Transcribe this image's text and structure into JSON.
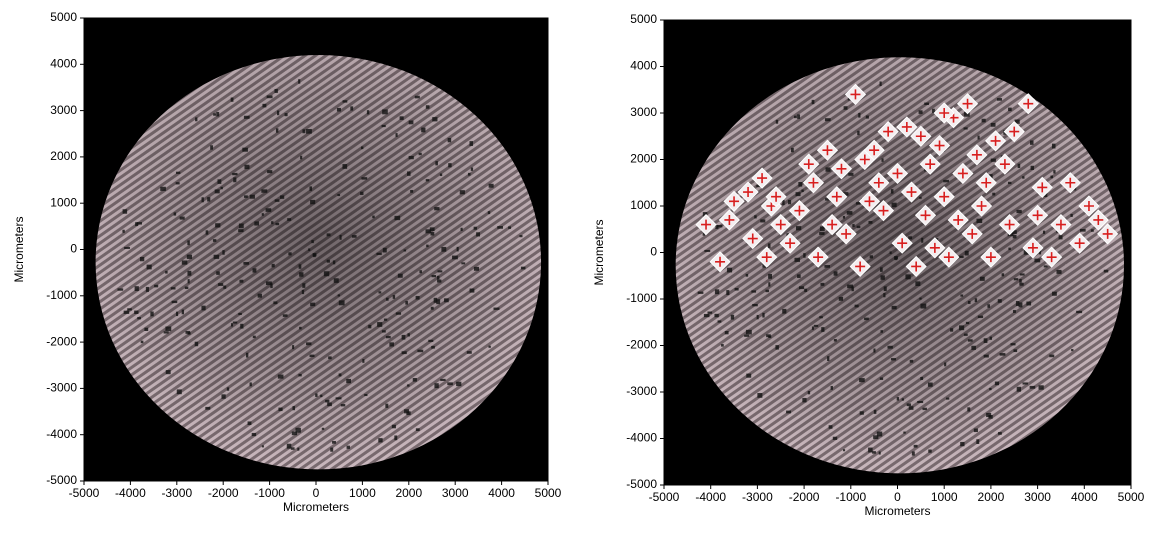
{
  "chart_data": [
    {
      "type": "image",
      "xlabel": "Micrometers",
      "ylabel": "Micrometers",
      "xlim": [
        -5000,
        5000
      ],
      "ylim": [
        -5000,
        5000
      ],
      "xticks": [
        -5000,
        -4000,
        -3000,
        -2000,
        -1000,
        0,
        1000,
        2000,
        3000,
        4000,
        5000
      ],
      "yticks": [
        -5000,
        -4000,
        -3000,
        -2000,
        -1000,
        0,
        1000,
        2000,
        3000,
        4000,
        5000
      ]
    },
    {
      "type": "scatter",
      "xlabel": "Micrometers",
      "ylabel": "Micrometers",
      "xlim": [
        -5000,
        5000
      ],
      "ylim": [
        -5000,
        5000
      ],
      "xticks": [
        -5000,
        -4000,
        -3000,
        -2000,
        -1000,
        0,
        1000,
        2000,
        3000,
        4000,
        5000
      ],
      "yticks": [
        -5000,
        -4000,
        -3000,
        -2000,
        -1000,
        0,
        1000,
        2000,
        3000,
        4000,
        5000
      ],
      "color": "#d81e1e",
      "x": [
        -4100,
        -3800,
        -3600,
        -3500,
        -3200,
        -2900,
        -2800,
        -2700,
        -2500,
        -2300,
        -2100,
        -1900,
        -1800,
        -1700,
        -1500,
        -1400,
        -1200,
        -1100,
        -900,
        -800,
        -700,
        -500,
        -400,
        -300,
        -200,
        0,
        100,
        300,
        400,
        500,
        600,
        700,
        800,
        900,
        1000,
        1100,
        1200,
        1300,
        1400,
        1500,
        1600,
        1700,
        1900,
        2000,
        2100,
        2300,
        2400,
        2500,
        2800,
        2900,
        3100,
        3300,
        3500,
        3700,
        3900,
        4100,
        4300,
        4500,
        3000,
        1800,
        200,
        -1300,
        -2600,
        -3100,
        -600,
        1000
      ],
      "values": [
        600,
        -200,
        700,
        1100,
        1300,
        1600,
        -100,
        1000,
        600,
        200,
        900,
        1900,
        1500,
        -100,
        2200,
        600,
        1800,
        400,
        3400,
        -300,
        2000,
        2200,
        1500,
        900,
        2600,
        1700,
        200,
        1300,
        -300,
        2500,
        800,
        1900,
        100,
        2300,
        1200,
        -100,
        2900,
        700,
        1700,
        3200,
        400,
        2100,
        1500,
        -100,
        2400,
        1900,
        600,
        2600,
        3200,
        100,
        1400,
        -100,
        600,
        1500,
        200,
        1000,
        700,
        400,
        800,
        1000,
        2700,
        1200,
        1200,
        300,
        1100,
        3000
      ]
    }
  ]
}
